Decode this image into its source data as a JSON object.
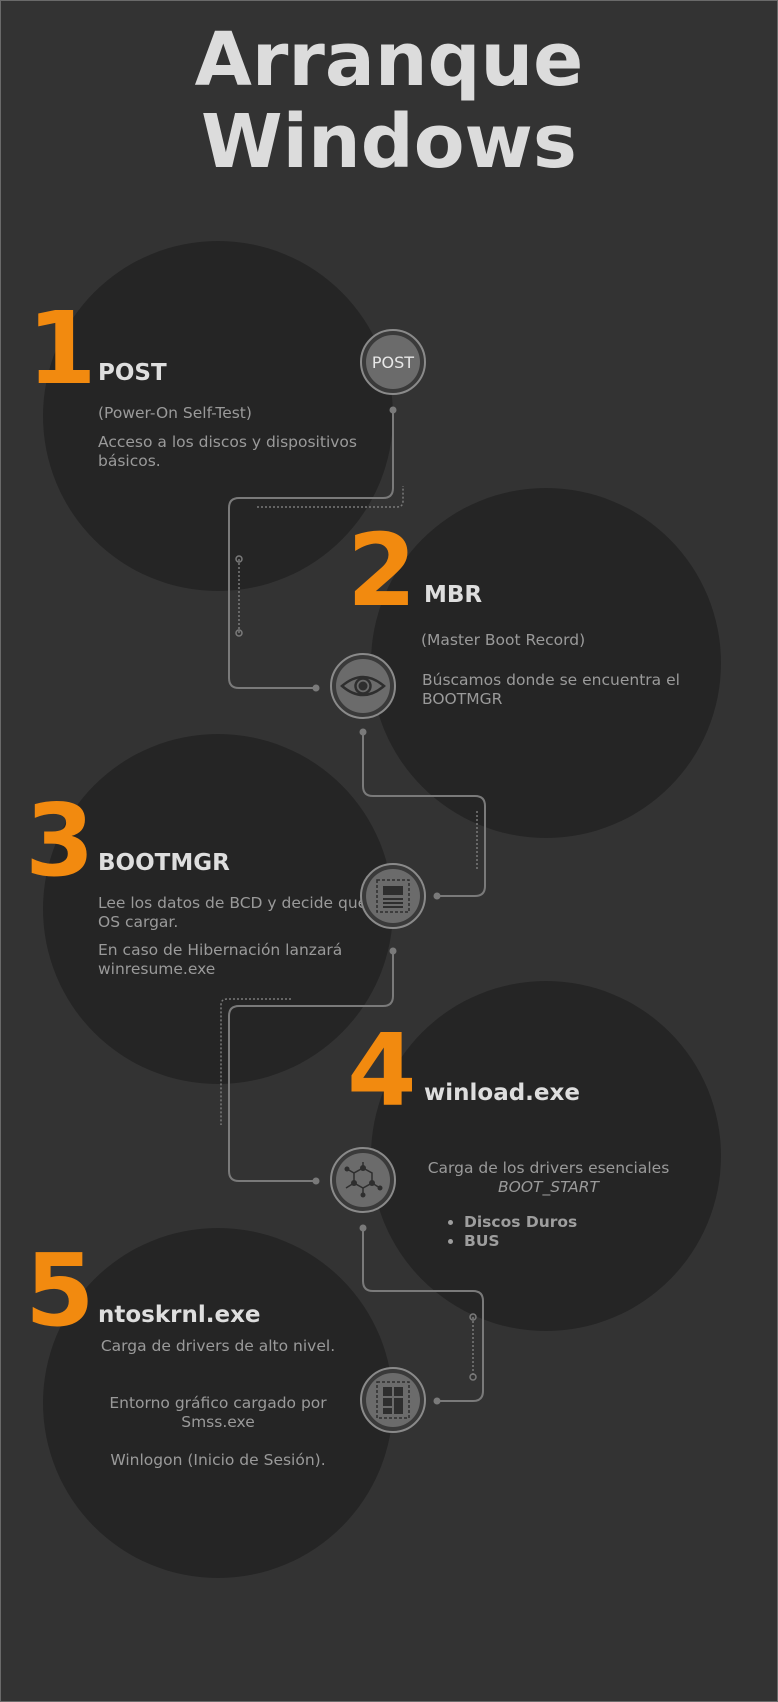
{
  "title": {
    "line1": "Arranque",
    "line2": "Windows"
  },
  "steps": [
    {
      "number": "1",
      "heading": "POST",
      "subtitle": "(Power-On Self-Test)",
      "description": "Acceso a los discos y dispositivos básicos.",
      "node_label": "POST",
      "icon": "post-label"
    },
    {
      "number": "2",
      "heading": "MBR",
      "subtitle": "(Master Boot Record)",
      "description": "Búscamos donde se encuentra el BOOTMGR",
      "icon": "eye-icon"
    },
    {
      "number": "3",
      "heading": "BOOTMGR",
      "description": "Lee los datos de BCD y decide que OS cargar.",
      "description2": "En caso de Hibernación lanzará winresume.exe",
      "icon": "document-icon"
    },
    {
      "number": "4",
      "heading": "winload.exe",
      "description": "Carga de los drivers esenciales",
      "description_italic": "BOOT_START",
      "bullets": [
        "Discos Duros",
        "BUS"
      ],
      "icon": "molecule-icon"
    },
    {
      "number": "5",
      "heading": "ntoskrnl.exe",
      "description": "Carga de drivers de alto nivel.",
      "description2": "Entorno gráfico cargado por Smss.exe",
      "description3": "Winlogon (Inicio de Sesión).",
      "icon": "layout-grid-icon"
    }
  ],
  "colors": {
    "background": "#333333",
    "circle": "#252525",
    "accent": "#f28a0f",
    "heading": "#dedede",
    "text": "#9a9a9a",
    "connector": "#7a7a7a"
  }
}
